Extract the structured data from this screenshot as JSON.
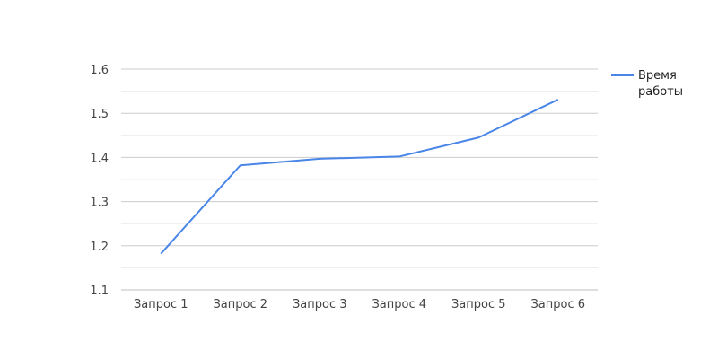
{
  "chart_data": {
    "type": "line",
    "title": "",
    "xlabel": "",
    "ylabel": "",
    "categories": [
      "Запрос 1",
      "Запрос 2",
      "Запрос 3",
      "Запрос 4",
      "Запрос 5",
      "Запрос 6"
    ],
    "series": [
      {
        "name": "Время работы",
        "values": [
          1.182,
          1.382,
          1.397,
          1.402,
          1.445,
          1.531
        ],
        "color": "#4a86e8"
      }
    ],
    "ylim": [
      1.1,
      1.6
    ],
    "y_ticks": [
      "1.1",
      "1.2",
      "1.3",
      "1.4",
      "1.5",
      "1.6"
    ],
    "grid": true,
    "legend": {
      "placement": "right",
      "lines": [
        "Время",
        "работы"
      ]
    }
  }
}
